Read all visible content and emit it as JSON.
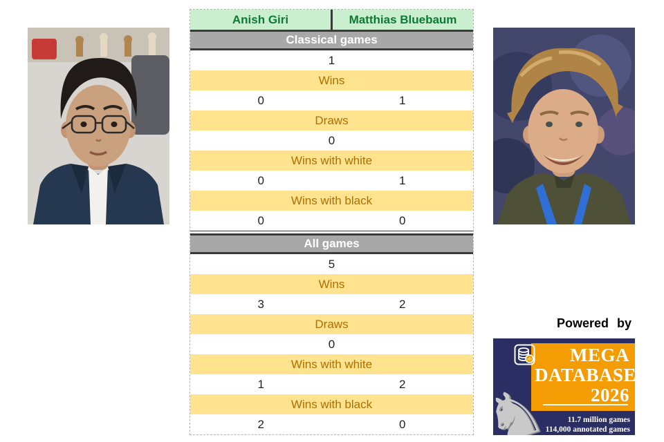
{
  "players": {
    "left": "Anish Giri",
    "right": "Matthias Bluebaum"
  },
  "table": {
    "sections": [
      {
        "title": "Classical games",
        "rows": [
          {
            "type": "span",
            "value": "1"
          },
          {
            "type": "label",
            "value": "Wins"
          },
          {
            "type": "pair",
            "left": "0",
            "right": "1"
          },
          {
            "type": "label",
            "value": "Draws"
          },
          {
            "type": "span",
            "value": "0"
          },
          {
            "type": "label",
            "value": "Wins with white"
          },
          {
            "type": "pair",
            "left": "0",
            "right": "1"
          },
          {
            "type": "label",
            "value": "Wins with black"
          },
          {
            "type": "pair",
            "left": "0",
            "right": "0"
          }
        ]
      },
      {
        "title": "All games",
        "rows": [
          {
            "type": "span",
            "value": "5"
          },
          {
            "type": "label",
            "value": "Wins"
          },
          {
            "type": "pair",
            "left": "3",
            "right": "2"
          },
          {
            "type": "label",
            "value": "Draws"
          },
          {
            "type": "span",
            "value": "0"
          },
          {
            "type": "label",
            "value": "Wins with white"
          },
          {
            "type": "pair",
            "left": "1",
            "right": "2"
          },
          {
            "type": "label",
            "value": "Wins with black"
          },
          {
            "type": "pair",
            "left": "2",
            "right": "0"
          }
        ]
      }
    ]
  },
  "powered_by": "Powered by",
  "logo": {
    "line1": "MEGA",
    "line2": "DATABASE",
    "line3": "2026",
    "stat1": "11.7 million games",
    "stat2": "114,000 annotated games",
    "knight_glyph": "♞"
  },
  "colors": {
    "header_green_bg": "#c9efce",
    "header_green_text": "#0c7a33",
    "section_gray_bg": "#a8a8a8",
    "label_yellow_bg": "#ffe38f",
    "label_yellow_text": "#ad6f00",
    "logo_navy": "#2b2e63",
    "logo_orange": "#f39c04"
  }
}
